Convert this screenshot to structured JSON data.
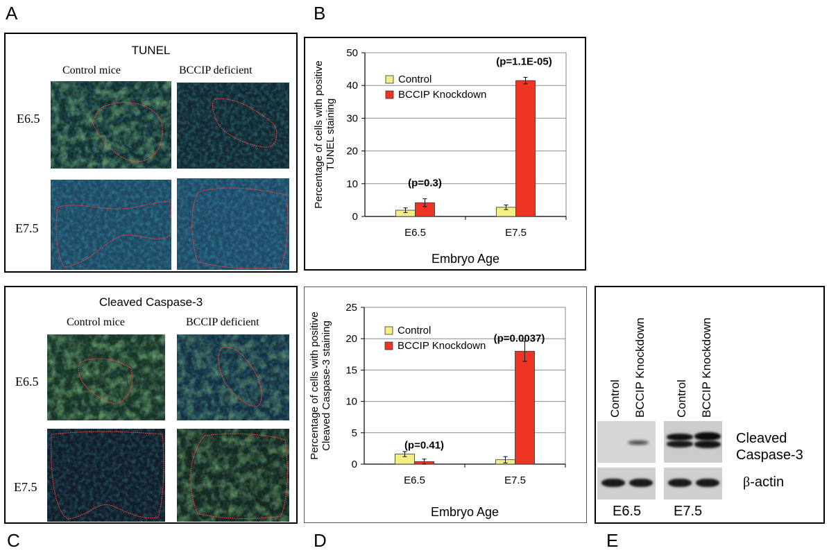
{
  "panels": {
    "a": {
      "letter": "A",
      "title": "TUNEL",
      "col1": "Control mice",
      "col2": "BCCIP deficient",
      "row1": "E6.5",
      "row2": "E7.5"
    },
    "b": {
      "letter": "B"
    },
    "c": {
      "letter": "C",
      "title": "Cleaved Caspase-3",
      "col1": "Control mice",
      "col2": "BCCIP deficient",
      "row1": "E6.5",
      "row2": "E7.5"
    },
    "d": {
      "letter": "D"
    },
    "e": {
      "letter": "E",
      "lanes": [
        "Control",
        "BCCIP Knockdown",
        "Control",
        "BCCIP Knockdown"
      ],
      "band1_line1": "Cleaved",
      "band1_line2": "Caspase-3",
      "band2_greek": "β",
      "band2_rest": "-actin",
      "group1": "E6.5",
      "group2": "E7.5"
    }
  },
  "chart_data": [
    {
      "type": "bar",
      "categories": [
        "E6.5",
        "E7.5"
      ],
      "series": [
        {
          "name": "Control",
          "values": [
            1.9,
            2.8
          ],
          "errors": [
            0.7,
            0.7
          ],
          "color": "#f3ef85"
        },
        {
          "name": "BCCIP Knockdown",
          "values": [
            4.2,
            41.5
          ],
          "errors": [
            1.2,
            1.0
          ],
          "color": "#ee3524"
        }
      ],
      "annotations": [
        "(p=0.3)",
        "(p=1.1E-05)"
      ],
      "ylabel_line1": "Percentage of cells with positive",
      "ylabel_line2": "TUNEL  staining",
      "xlabel": "Embryo Age",
      "ylim": [
        0,
        50
      ],
      "yticks": [
        "0",
        "10",
        "20",
        "30",
        "40",
        "50"
      ],
      "grid": true,
      "legend": "top-left"
    },
    {
      "type": "bar",
      "categories": [
        "E6.5",
        "E7.5"
      ],
      "series": [
        {
          "name": "Control",
          "values": [
            1.6,
            0.7
          ],
          "errors": [
            0.4,
            0.5
          ],
          "color": "#f3ef85"
        },
        {
          "name": "BCCIP Knockdown",
          "values": [
            0.4,
            18.0
          ],
          "errors": [
            0.4,
            1.6
          ],
          "color": "#ee3524"
        }
      ],
      "annotations": [
        "(p=0.41)",
        "(p=0.0037)"
      ],
      "ylabel_line1": "Percentage of cells with positive",
      "ylabel_line2": "Cleaved  Caspase-3 staining",
      "xlabel": "Embryo Age",
      "ylim": [
        0,
        25
      ],
      "yticks": [
        "0",
        "5",
        "10",
        "15",
        "20",
        "25"
      ],
      "grid": true,
      "legend": "top-left"
    }
  ]
}
